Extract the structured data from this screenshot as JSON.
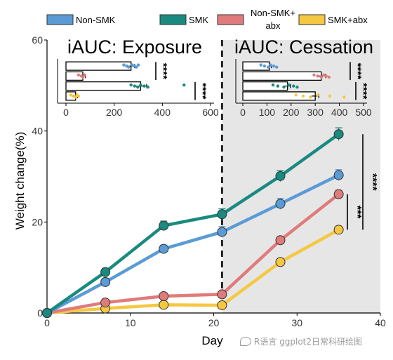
{
  "chart_data": [
    {
      "type": "line",
      "xlabel": "Day",
      "ylabel": "Weight change(%)",
      "xlim": [
        0,
        40
      ],
      "ylim": [
        0,
        60
      ],
      "x_ticks": [
        0,
        10,
        20,
        30,
        40
      ],
      "y_ticks": [
        0,
        20,
        40,
        60
      ],
      "x": [
        0,
        7,
        14,
        21,
        28,
        35
      ],
      "cessation_start_day": 21,
      "series": [
        {
          "name": "Non-SMK",
          "color": "#5b9bd5",
          "values": [
            0,
            6.8,
            14.1,
            17.8,
            24.0,
            30.3
          ],
          "errors": [
            0.3,
            0.8,
            0.8,
            1.2,
            1.2,
            1.2
          ]
        },
        {
          "name": "SMK",
          "color": "#1a8a80",
          "values": [
            0,
            9.0,
            19.2,
            21.7,
            30.1,
            39.3
          ],
          "errors": [
            0.3,
            0.8,
            1.0,
            1.2,
            1.2,
            1.4
          ]
        },
        {
          "name": "Non-SMK+abx",
          "color": "#e07b7b",
          "values": [
            0,
            2.3,
            3.7,
            4.1,
            16.0,
            26.1
          ],
          "errors": [
            0.3,
            0.4,
            0.5,
            0.5,
            0.8,
            0.9
          ]
        },
        {
          "name": "SMK+abx",
          "color": "#f5c842",
          "values": [
            0,
            1.0,
            1.8,
            1.7,
            11.2,
            18.3
          ],
          "errors": [
            0.2,
            0.3,
            0.3,
            0.3,
            0.7,
            0.8
          ]
        }
      ],
      "significance": [
        {
          "label": "***",
          "span": [
            18.3,
            26.1
          ]
        },
        {
          "label": "****",
          "span": [
            18.3,
            39.3
          ]
        }
      ]
    },
    {
      "type": "bar",
      "title": "iAUC: Exposure",
      "orientation": "horizontal",
      "xlim": [
        0,
        600
      ],
      "x_ticks": [
        0,
        200,
        400,
        600
      ],
      "categories": [
        "Non-SMK",
        "Non-SMK+abx",
        "SMK",
        "SMK+abx"
      ],
      "values": [
        270,
        70,
        310,
        40
      ],
      "errors": [
        15,
        10,
        25,
        8
      ],
      "significance": [
        {
          "label": "****",
          "between": [
            "Non-SMK",
            "Non-SMK+abx"
          ]
        },
        {
          "label": "****",
          "between": [
            "SMK",
            "SMK+abx"
          ]
        }
      ]
    },
    {
      "type": "bar",
      "title": "iAUC: Cessation",
      "orientation": "horizontal",
      "xlim": [
        0,
        500
      ],
      "x_ticks": [
        0,
        100,
        200,
        300,
        400,
        500
      ],
      "categories": [
        "Non-SMK",
        "Non-SMK+abx",
        "SMK",
        "SMK+abx"
      ],
      "values": [
        110,
        325,
        185,
        300
      ],
      "errors": [
        8,
        18,
        12,
        15
      ],
      "significance": [
        {
          "label": "****",
          "between": [
            "Non-SMK",
            "Non-SMK+abx"
          ]
        },
        {
          "label": "****",
          "between": [
            "SMK",
            "SMK+abx"
          ]
        }
      ]
    }
  ],
  "legend": [
    {
      "label": "Non-SMK",
      "color": "#5b9bd5"
    },
    {
      "label": "SMK",
      "color": "#1a8a80"
    },
    {
      "label": "Non-SMK+\nabx",
      "color": "#e07b7b"
    },
    {
      "label": "SMK+abx",
      "color": "#f5c842"
    }
  ],
  "watermark": "R语言 ggplot2日常科研绘图"
}
